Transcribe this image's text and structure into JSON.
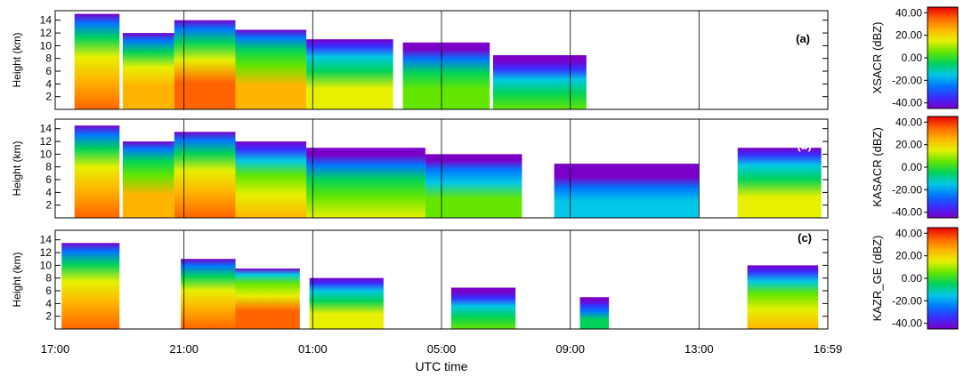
{
  "chart_data": {
    "type": "heatmap",
    "shared_xlabel": "UTC time",
    "x_ticks": [
      "17:00",
      "21:00",
      "01:00",
      "05:00",
      "09:00",
      "13:00",
      "16:59"
    ],
    "panels": [
      {
        "label": "(a)",
        "ylabel": "Height (km)",
        "y_ticks": [
          2,
          4,
          6,
          8,
          10,
          12,
          14
        ],
        "ylim": [
          0,
          15.5
        ],
        "colorbar_label": "XSACR (dBZ)",
        "colorbar_ticks": [
          "40.00",
          "20.00",
          "0.00",
          "-20.00",
          "-40.00"
        ],
        "clim": [
          -45,
          45
        ],
        "data_extent_hours": [
          0,
          17.7
        ],
        "cloud_blocks": [
          {
            "start": 0.6,
            "end": 2.0,
            "top": 15.0,
            "peak": 30
          },
          {
            "start": 2.1,
            "end": 3.7,
            "top": 12.0,
            "peak": 28
          },
          {
            "start": 3.7,
            "end": 5.6,
            "top": 14.0,
            "peak": 34
          },
          {
            "start": 5.6,
            "end": 7.8,
            "top": 12.5,
            "peak": 25
          },
          {
            "start": 7.8,
            "end": 10.5,
            "top": 11.0,
            "peak": 15
          },
          {
            "start": 10.8,
            "end": 13.5,
            "top": 10.5,
            "peak": 8
          },
          {
            "start": 13.6,
            "end": 16.5,
            "top": 8.5,
            "peak": 0
          }
        ]
      },
      {
        "label": "(b)",
        "ylabel": "Height (km)",
        "y_ticks": [
          2,
          4,
          6,
          8,
          10,
          12,
          14
        ],
        "ylim": [
          0,
          15.5
        ],
        "colorbar_label": "KASACR (dBZ)",
        "colorbar_ticks": [
          "40.00",
          "20.00",
          "0.00",
          "-20.00",
          "-40.00"
        ],
        "clim": [
          -45,
          45
        ],
        "data_extent_hours": [
          0,
          24
        ],
        "cloud_blocks": [
          {
            "start": 0.6,
            "end": 2.0,
            "top": 14.5,
            "peak": 30
          },
          {
            "start": 2.1,
            "end": 3.7,
            "top": 12.0,
            "peak": 26
          },
          {
            "start": 3.7,
            "end": 5.6,
            "top": 13.5,
            "peak": 32
          },
          {
            "start": 5.6,
            "end": 7.8,
            "top": 12.0,
            "peak": 22
          },
          {
            "start": 7.8,
            "end": 11.5,
            "top": 11.0,
            "peak": 12
          },
          {
            "start": 11.5,
            "end": 14.5,
            "top": 10.0,
            "peak": 5
          },
          {
            "start": 15.5,
            "end": 20.0,
            "top": 8.5,
            "peak": -12
          },
          {
            "start": 21.2,
            "end": 23.8,
            "top": 11.0,
            "peak": 15
          }
        ]
      },
      {
        "label": "(c)",
        "ylabel": "Height (km)",
        "y_ticks": [
          2,
          4,
          6,
          8,
          10,
          12,
          14
        ],
        "ylim": [
          0,
          15.5
        ],
        "colorbar_label": "KAZR_GE (dBZ)",
        "colorbar_ticks": [
          "40.00",
          "20.00",
          "0.00",
          "-20.00",
          "-40.00"
        ],
        "clim": [
          -45,
          45
        ],
        "data_extent_hours": [
          0,
          24
        ],
        "cloud_blocks": [
          {
            "start": 0.2,
            "end": 2.0,
            "top": 13.5,
            "peak": 30
          },
          {
            "start": 3.9,
            "end": 5.6,
            "top": 11.0,
            "peak": 30
          },
          {
            "start": 5.6,
            "end": 7.6,
            "top": 9.5,
            "peak": 35
          },
          {
            "start": 7.9,
            "end": 10.2,
            "top": 8.0,
            "peak": 15
          },
          {
            "start": 12.3,
            "end": 14.3,
            "top": 6.5,
            "peak": 0
          },
          {
            "start": 16.3,
            "end": 17.2,
            "top": 5.0,
            "peak": -5
          },
          {
            "start": 21.5,
            "end": 23.7,
            "top": 10.0,
            "peak": 20
          }
        ]
      }
    ]
  },
  "colors": {
    "colormap": [
      "#7a00c8",
      "#3a2cff",
      "#0078ff",
      "#00c8e6",
      "#00d25a",
      "#64e600",
      "#e6f000",
      "#ffb400",
      "#ff6400",
      "#e60000"
    ],
    "axis": "#000000",
    "background": "#ffffff"
  }
}
